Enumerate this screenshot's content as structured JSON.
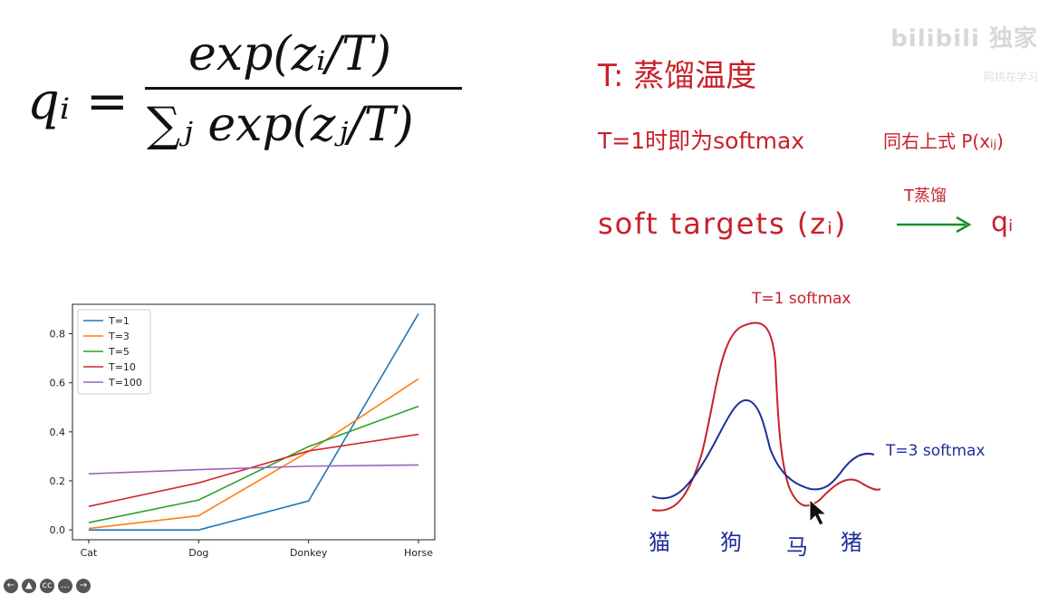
{
  "formula": {
    "lhs": "qᵢ =",
    "numerator": "exp(zᵢ/T)",
    "denominator": "∑ⱼ exp(zⱼ/T)"
  },
  "annotations": {
    "line1": "T: 蒸馏温度",
    "line2a": "T=1时即为softmax",
    "line2b": "同右上式 P(xᵢⱼ)",
    "line3a": "soft targets (zᵢ)",
    "arrow_label": "T蒸馏",
    "line3b": "qᵢ"
  },
  "watermark": {
    "main": "bilibili 独家",
    "sub": "阿桃在学习"
  },
  "sketch": {
    "label_red": "T=1 softmax",
    "label_blue": "T=3 softmax",
    "x_labels": [
      "猫",
      "狗",
      "马",
      "猪"
    ],
    "colors": {
      "red": "#c8202a",
      "blue": "#1f2f9a"
    }
  },
  "chart_data": {
    "type": "line",
    "categories": [
      "Cat",
      "Dog",
      "Donkey",
      "Horse"
    ],
    "ylim": [
      -0.04,
      0.92
    ],
    "yticks": [
      0.0,
      0.2,
      0.4,
      0.6,
      0.8
    ],
    "legend_position": "top-left",
    "series": [
      {
        "name": "T=1",
        "color": "#1f77b4",
        "values": [
          0.0,
          0.0,
          0.118,
          0.882
        ]
      },
      {
        "name": "T=3",
        "color": "#ff7f0e",
        "values": [
          0.006,
          0.058,
          0.32,
          0.616
        ]
      },
      {
        "name": "T=5",
        "color": "#2ca02c",
        "values": [
          0.03,
          0.122,
          0.34,
          0.504
        ]
      },
      {
        "name": "T=10",
        "color": "#d62728",
        "values": [
          0.096,
          0.192,
          0.322,
          0.39
        ]
      },
      {
        "name": "T=100",
        "color": "#9467bd",
        "values": [
          0.229,
          0.246,
          0.26,
          0.265
        ]
      }
    ]
  },
  "controls": [
    "prev",
    "menu",
    "cc",
    "more",
    "next"
  ]
}
